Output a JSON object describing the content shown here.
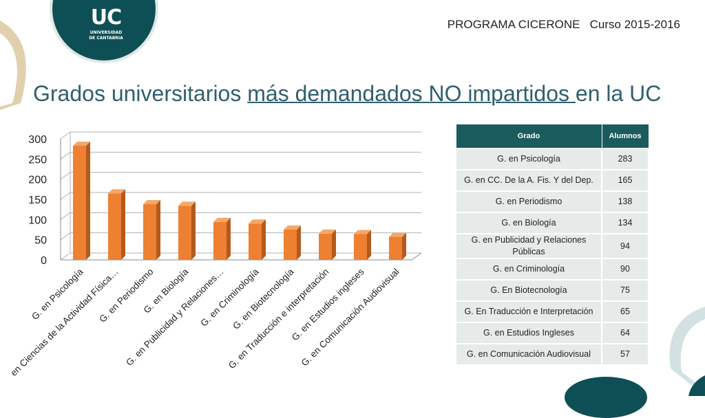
{
  "header": {
    "program": "PROGRAMA CICERONE",
    "course": "Curso 2015-2016"
  },
  "logo": {
    "mark": "UC",
    "line1": "UNIVERSIDAD",
    "line2": "DE CANTABRIA"
  },
  "title": {
    "part1": "Grados universitarios ",
    "part2": "más demandados NO impartidos ",
    "part3": "en la UC"
  },
  "colors": {
    "bar_front": "#ee8032",
    "bar_side": "#b35a1c",
    "bar_top": "#f5a769",
    "table_header": "#1a5c5e",
    "table_cell": "#e6ebea",
    "title": "#2f5f6e"
  },
  "chart_data": {
    "type": "bar",
    "categories": [
      "G. en Psicología",
      "en Ciencias de la Actividad Física…",
      "G. en Periodismo",
      "G. en Biología",
      "G. en Publicidad y Relaciones…",
      "G. en Criminología",
      "G. en Biotecnología",
      "G. en Traducción e interpretación",
      "G. en Estudios ingleses",
      "G. en Comunicación Audiovisual"
    ],
    "values": [
      283,
      165,
      138,
      134,
      94,
      90,
      75,
      65,
      64,
      57
    ],
    "ylim": [
      0,
      300
    ],
    "yticks": [
      "0",
      "50",
      "100",
      "150",
      "200",
      "250",
      "300"
    ],
    "grid": true,
    "title": "",
    "xlabel": "",
    "ylabel": ""
  },
  "table": {
    "headers": [
      "Grado",
      "Alumnos"
    ],
    "rows": [
      [
        "G. en Psicología",
        "283"
      ],
      [
        "G. en CC. De la A. Fis. Y del Dep.",
        "165"
      ],
      [
        "G. en Periodismo",
        "138"
      ],
      [
        "G. en Biología",
        "134"
      ],
      [
        "G. en Publicidad y Relaciones Públicas",
        "94"
      ],
      [
        "G. en Criminología",
        "90"
      ],
      [
        "G. En Biotecnología",
        "75"
      ],
      [
        "G. En Traducción e Interpretación",
        "65"
      ],
      [
        "G. en Estudios Ingleses",
        "64"
      ],
      [
        "G. en Comunicación Audiovisual",
        "57"
      ]
    ]
  }
}
